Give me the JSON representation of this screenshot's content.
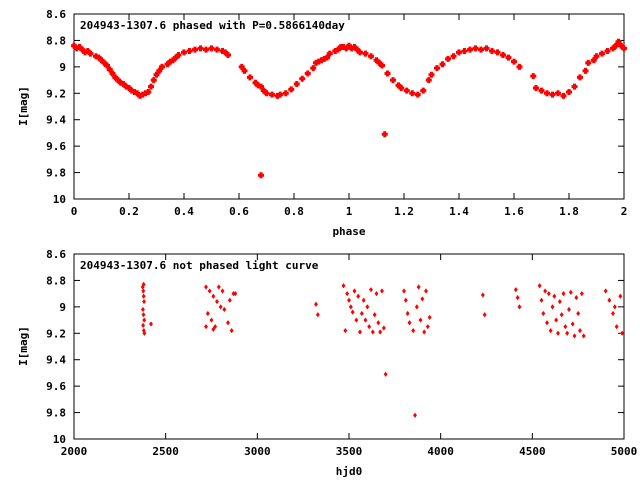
{
  "chart_data": [
    {
      "type": "scatter",
      "title": "204943-1307.6 phased with P=0.5866140day",
      "xlabel": "phase",
      "ylabel": "I[mag]",
      "xlim": [
        0,
        2
      ],
      "ylim": [
        8.6,
        10
      ],
      "y_inverted": true,
      "xticks": [
        "0",
        "0.2",
        "0.4",
        "0.6",
        "0.8",
        "1",
        "1.2",
        "1.4",
        "1.6",
        "1.8",
        "2"
      ],
      "yticks": [
        "8.6",
        "8.8",
        "9",
        "9.2",
        "9.4",
        "9.6",
        "9.8",
        "10"
      ],
      "marker_color": "#ff0000",
      "marker": "plus",
      "points": [
        [
          0.0,
          8.84
        ],
        [
          0.01,
          8.86
        ],
        [
          0.02,
          8.85
        ],
        [
          0.03,
          8.87
        ],
        [
          0.04,
          8.89
        ],
        [
          0.05,
          8.88
        ],
        [
          0.06,
          8.9
        ],
        [
          0.08,
          8.92
        ],
        [
          0.09,
          8.93
        ],
        [
          0.1,
          8.95
        ],
        [
          0.11,
          8.97
        ],
        [
          0.12,
          8.99
        ],
        [
          0.13,
          9.02
        ],
        [
          0.14,
          9.05
        ],
        [
          0.15,
          9.08
        ],
        [
          0.16,
          9.1
        ],
        [
          0.17,
          9.12
        ],
        [
          0.18,
          9.13
        ],
        [
          0.19,
          9.15
        ],
        [
          0.2,
          9.16
        ],
        [
          0.21,
          9.18
        ],
        [
          0.22,
          9.19
        ],
        [
          0.23,
          9.2
        ],
        [
          0.24,
          9.22
        ],
        [
          0.25,
          9.21
        ],
        [
          0.26,
          9.2
        ],
        [
          0.27,
          9.19
        ],
        [
          0.28,
          9.15
        ],
        [
          0.29,
          9.1
        ],
        [
          0.3,
          9.06
        ],
        [
          0.31,
          9.03
        ],
        [
          0.32,
          9.0
        ],
        [
          0.34,
          8.98
        ],
        [
          0.35,
          8.96
        ],
        [
          0.36,
          8.95
        ],
        [
          0.37,
          8.93
        ],
        [
          0.38,
          8.91
        ],
        [
          0.4,
          8.89
        ],
        [
          0.42,
          8.88
        ],
        [
          0.44,
          8.87
        ],
        [
          0.46,
          8.86
        ],
        [
          0.48,
          8.87
        ],
        [
          0.5,
          8.86
        ],
        [
          0.52,
          8.87
        ],
        [
          0.54,
          8.88
        ],
        [
          0.55,
          8.89
        ],
        [
          0.56,
          8.91
        ],
        [
          0.61,
          9.0
        ],
        [
          0.62,
          9.03
        ],
        [
          0.64,
          9.08
        ],
        [
          0.66,
          9.12
        ],
        [
          0.67,
          9.14
        ],
        [
          0.68,
          9.15
        ],
        [
          0.69,
          9.18
        ],
        [
          0.7,
          9.2
        ],
        [
          0.72,
          9.21
        ],
        [
          0.74,
          9.22
        ],
        [
          0.75,
          9.21
        ],
        [
          0.77,
          9.2
        ],
        [
          0.79,
          9.17
        ],
        [
          0.81,
          9.13
        ],
        [
          0.83,
          9.09
        ],
        [
          0.85,
          9.05
        ],
        [
          0.87,
          9.01
        ],
        [
          0.88,
          8.97
        ],
        [
          0.89,
          8.96
        ],
        [
          0.9,
          8.95
        ],
        [
          0.91,
          8.94
        ],
        [
          0.92,
          8.93
        ],
        [
          0.93,
          8.9
        ],
        [
          0.95,
          8.88
        ],
        [
          0.96,
          8.87
        ],
        [
          0.97,
          8.85
        ],
        [
          0.98,
          8.85
        ],
        [
          0.99,
          8.86
        ],
        [
          1.0,
          8.84
        ],
        [
          1.01,
          8.86
        ],
        [
          1.02,
          8.85
        ],
        [
          1.03,
          8.87
        ],
        [
          1.04,
          8.89
        ],
        [
          1.06,
          8.9
        ],
        [
          1.08,
          8.92
        ],
        [
          1.1,
          8.95
        ],
        [
          1.11,
          8.97
        ],
        [
          1.12,
          8.99
        ],
        [
          1.14,
          9.05
        ],
        [
          1.16,
          9.1
        ],
        [
          1.18,
          9.14
        ],
        [
          1.19,
          9.16
        ],
        [
          1.21,
          9.18
        ],
        [
          1.23,
          9.2
        ],
        [
          1.25,
          9.21
        ],
        [
          1.27,
          9.18
        ],
        [
          1.29,
          9.1
        ],
        [
          1.3,
          9.06
        ],
        [
          1.32,
          9.01
        ],
        [
          1.34,
          8.98
        ],
        [
          1.36,
          8.94
        ],
        [
          1.38,
          8.92
        ],
        [
          1.4,
          8.89
        ],
        [
          1.42,
          8.88
        ],
        [
          1.44,
          8.87
        ],
        [
          1.46,
          8.86
        ],
        [
          1.48,
          8.87
        ],
        [
          1.5,
          8.86
        ],
        [
          1.52,
          8.88
        ],
        [
          1.54,
          8.89
        ],
        [
          1.56,
          8.91
        ],
        [
          1.58,
          8.93
        ],
        [
          1.6,
          8.96
        ],
        [
          1.62,
          9.0
        ],
        [
          1.67,
          9.07
        ],
        [
          1.68,
          9.16
        ],
        [
          1.7,
          9.18
        ],
        [
          1.72,
          9.2
        ],
        [
          1.74,
          9.21
        ],
        [
          1.76,
          9.2
        ],
        [
          1.78,
          9.22
        ],
        [
          1.8,
          9.19
        ],
        [
          1.82,
          9.15
        ],
        [
          1.84,
          9.08
        ],
        [
          1.86,
          9.03
        ],
        [
          1.87,
          8.97
        ],
        [
          1.89,
          8.95
        ],
        [
          1.9,
          8.92
        ],
        [
          1.92,
          8.9
        ],
        [
          1.94,
          8.88
        ],
        [
          1.96,
          8.86
        ],
        [
          1.97,
          8.84
        ],
        [
          1.98,
          8.81
        ],
        [
          1.99,
          8.84
        ],
        [
          2.0,
          8.86
        ],
        [
          0.68,
          9.82
        ],
        [
          1.13,
          9.51
        ]
      ]
    },
    {
      "type": "scatter",
      "title": "204943-1307.6 not phased light curve",
      "xlabel": "hjd0",
      "ylabel": "I[mag]",
      "xlim": [
        2000,
        5000
      ],
      "ylim": [
        8.6,
        10
      ],
      "y_inverted": true,
      "xticks": [
        "2000",
        "2500",
        "3000",
        "3500",
        "4000",
        "4500",
        "5000"
      ],
      "yticks": [
        "8.6",
        "8.8",
        "9",
        "9.2",
        "9.4",
        "9.6",
        "9.8",
        "10"
      ],
      "marker_color": "#ff0000",
      "marker": "diamond",
      "points": [
        [
          2375,
          8.85
        ],
        [
          2378,
          8.88
        ],
        [
          2380,
          8.92
        ],
        [
          2382,
          8.96
        ],
        [
          2376,
          9.02
        ],
        [
          2379,
          9.06
        ],
        [
          2383,
          9.1
        ],
        [
          2377,
          9.14
        ],
        [
          2381,
          9.18
        ],
        [
          2384,
          9.2
        ],
        [
          2380,
          8.83
        ],
        [
          2420,
          9.13
        ],
        [
          2720,
          8.85
        ],
        [
          2740,
          8.88
        ],
        [
          2760,
          8.92
        ],
        [
          2780,
          8.96
        ],
        [
          2800,
          9.0
        ],
        [
          2730,
          9.05
        ],
        [
          2750,
          9.1
        ],
        [
          2770,
          9.15
        ],
        [
          2790,
          8.85
        ],
        [
          2810,
          8.88
        ],
        [
          2820,
          9.02
        ],
        [
          2840,
          9.12
        ],
        [
          2860,
          9.18
        ],
        [
          2870,
          8.9
        ],
        [
          2880,
          8.9
        ],
        [
          2760,
          9.17
        ],
        [
          2850,
          8.95
        ],
        [
          2720,
          9.15
        ],
        [
          3320,
          8.98
        ],
        [
          3330,
          9.06
        ],
        [
          3470,
          8.84
        ],
        [
          3490,
          8.9
        ],
        [
          3500,
          8.95
        ],
        [
          3510,
          9.0
        ],
        [
          3520,
          9.04
        ],
        [
          3480,
          9.18
        ],
        [
          3530,
          8.88
        ],
        [
          3540,
          9.1
        ],
        [
          3550,
          8.92
        ],
        [
          3560,
          9.19
        ],
        [
          3570,
          9.05
        ],
        [
          3580,
          8.95
        ],
        [
          3590,
          9.1
        ],
        [
          3600,
          9.0
        ],
        [
          3610,
          9.15
        ],
        [
          3620,
          8.87
        ],
        [
          3630,
          9.19
        ],
        [
          3640,
          9.06
        ],
        [
          3650,
          8.9
        ],
        [
          3660,
          9.12
        ],
        [
          3670,
          9.19
        ],
        [
          3680,
          8.88
        ],
        [
          3690,
          9.16
        ],
        [
          3700,
          9.51
        ],
        [
          3800,
          8.88
        ],
        [
          3810,
          8.95
        ],
        [
          3820,
          9.05
        ],
        [
          3830,
          9.12
        ],
        [
          3850,
          9.18
        ],
        [
          3860,
          9.82
        ],
        [
          3870,
          9.0
        ],
        [
          3880,
          8.85
        ],
        [
          3890,
          9.1
        ],
        [
          3900,
          8.94
        ],
        [
          3910,
          9.19
        ],
        [
          3920,
          8.88
        ],
        [
          3930,
          9.15
        ],
        [
          3940,
          9.08
        ],
        [
          4230,
          8.91
        ],
        [
          4240,
          9.06
        ],
        [
          4410,
          8.87
        ],
        [
          4420,
          8.93
        ],
        [
          4430,
          9.0
        ],
        [
          4540,
          8.84
        ],
        [
          4550,
          8.95
        ],
        [
          4560,
          9.05
        ],
        [
          4570,
          8.88
        ],
        [
          4580,
          9.12
        ],
        [
          4590,
          8.9
        ],
        [
          4600,
          9.18
        ],
        [
          4610,
          9.0
        ],
        [
          4620,
          8.92
        ],
        [
          4630,
          9.1
        ],
        [
          4640,
          9.2
        ],
        [
          4650,
          8.96
        ],
        [
          4660,
          9.06
        ],
        [
          4670,
          8.9
        ],
        [
          4680,
          9.15
        ],
        [
          4690,
          9.2
        ],
        [
          4700,
          9.02
        ],
        [
          4710,
          8.89
        ],
        [
          4720,
          9.13
        ],
        [
          4730,
          9.22
        ],
        [
          4740,
          8.93
        ],
        [
          4750,
          9.05
        ],
        [
          4760,
          9.18
        ],
        [
          4770,
          8.9
        ],
        [
          4780,
          9.22
        ],
        [
          4900,
          8.88
        ],
        [
          4920,
          8.95
        ],
        [
          4940,
          9.05
        ],
        [
          4960,
          9.15
        ],
        [
          4980,
          8.92
        ],
        [
          4990,
          9.2
        ],
        [
          4950,
          9.0
        ]
      ]
    }
  ]
}
